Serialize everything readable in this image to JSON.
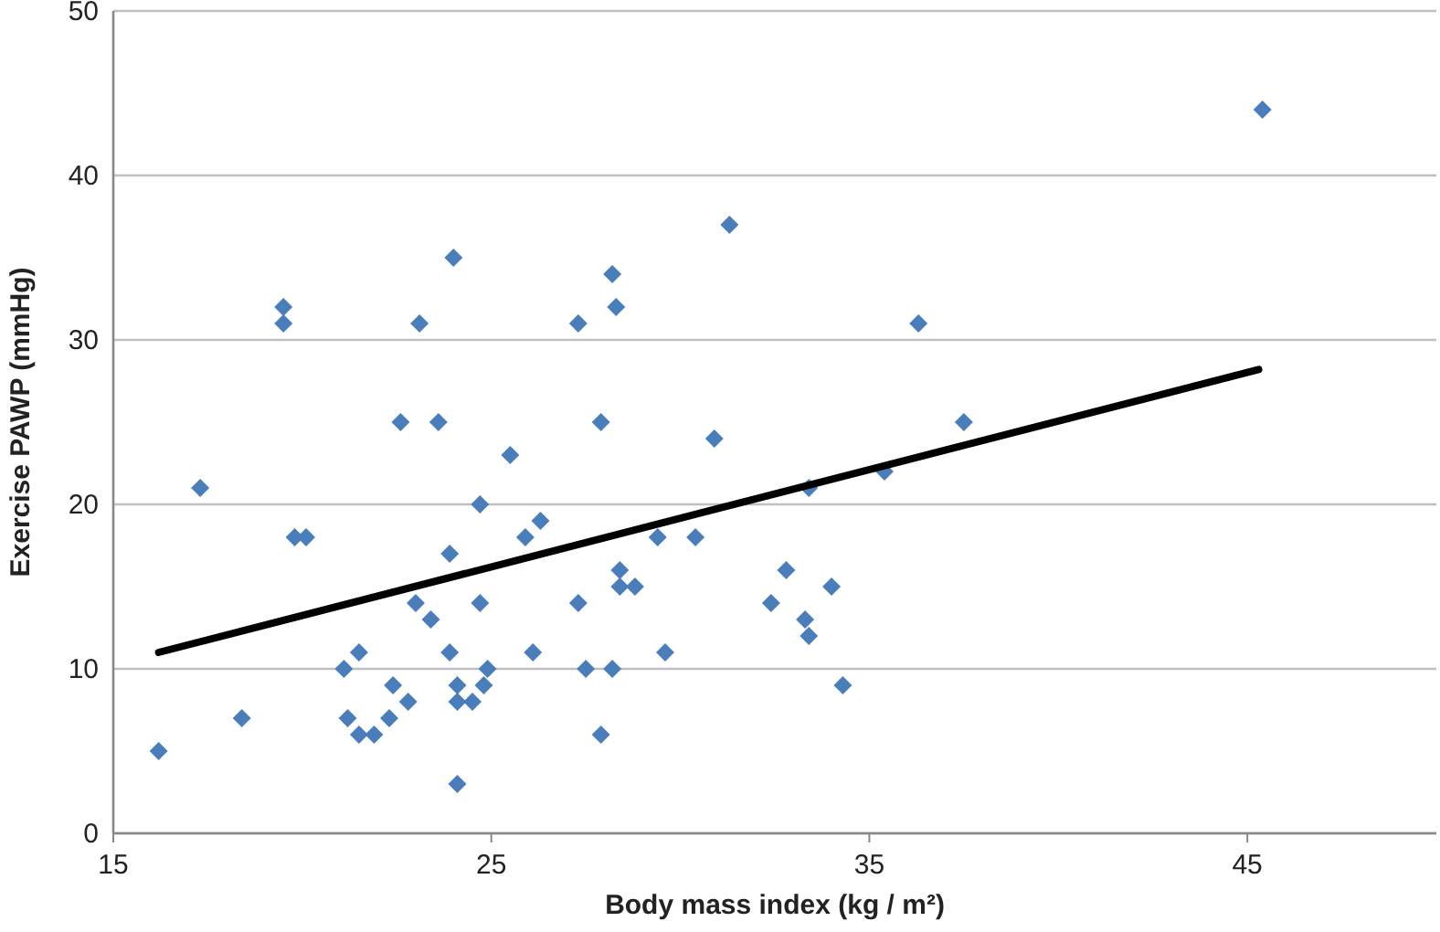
{
  "chart_data": {
    "type": "scatter",
    "xlabel": "Body mass index (kg / m²)",
    "ylabel": "Exercise PAWP (mmHg)",
    "xlim": [
      15,
      50
    ],
    "xticks": [
      15,
      25,
      35,
      45
    ],
    "ylim": [
      0,
      50
    ],
    "yticks": [
      0,
      10,
      20,
      30,
      40,
      50
    ],
    "grid": "y",
    "marker": "diamond",
    "series": [
      {
        "color": "#4a7ebb",
        "x": [
          16.2,
          17.3,
          18.4,
          19.5,
          19.5,
          19.8,
          20.1,
          21.1,
          21.2,
          21.5,
          21.5,
          21.9,
          22.3,
          22.4,
          22.6,
          22.8,
          23.0,
          23.1,
          23.4,
          23.6,
          23.9,
          23.9,
          24.0,
          24.1,
          24.1,
          24.1,
          24.5,
          24.7,
          24.7,
          24.8,
          24.9,
          25.5,
          25.9,
          26.1,
          26.3,
          27.3,
          27.3,
          27.5,
          27.9,
          27.9,
          28.2,
          28.2,
          28.3,
          28.4,
          28.4,
          28.8,
          29.4,
          29.6,
          30.4,
          30.9,
          31.3,
          32.4,
          32.8,
          33.3,
          33.4,
          33.4,
          34.0,
          34.3,
          35.4,
          36.3,
          37.5,
          45.4
        ],
        "values": [
          5,
          21,
          7,
          32,
          31,
          18,
          18,
          10,
          7,
          11,
          6,
          6,
          7,
          9,
          25,
          8,
          14,
          31,
          13,
          25,
          11,
          17,
          35,
          9,
          8,
          3,
          8,
          20,
          14,
          9,
          10,
          23,
          18,
          11,
          19,
          31,
          14,
          10,
          25,
          6,
          34,
          10,
          32,
          16,
          15,
          15,
          18,
          11,
          18,
          24,
          37,
          14,
          16,
          13,
          12,
          21,
          15,
          9,
          22,
          31,
          25,
          44
        ]
      },
      {
        "type": "line",
        "color": "#000000",
        "marker": "none",
        "x": [
          16.2,
          45.3
        ],
        "values": [
          11,
          28.2
        ]
      }
    ]
  }
}
